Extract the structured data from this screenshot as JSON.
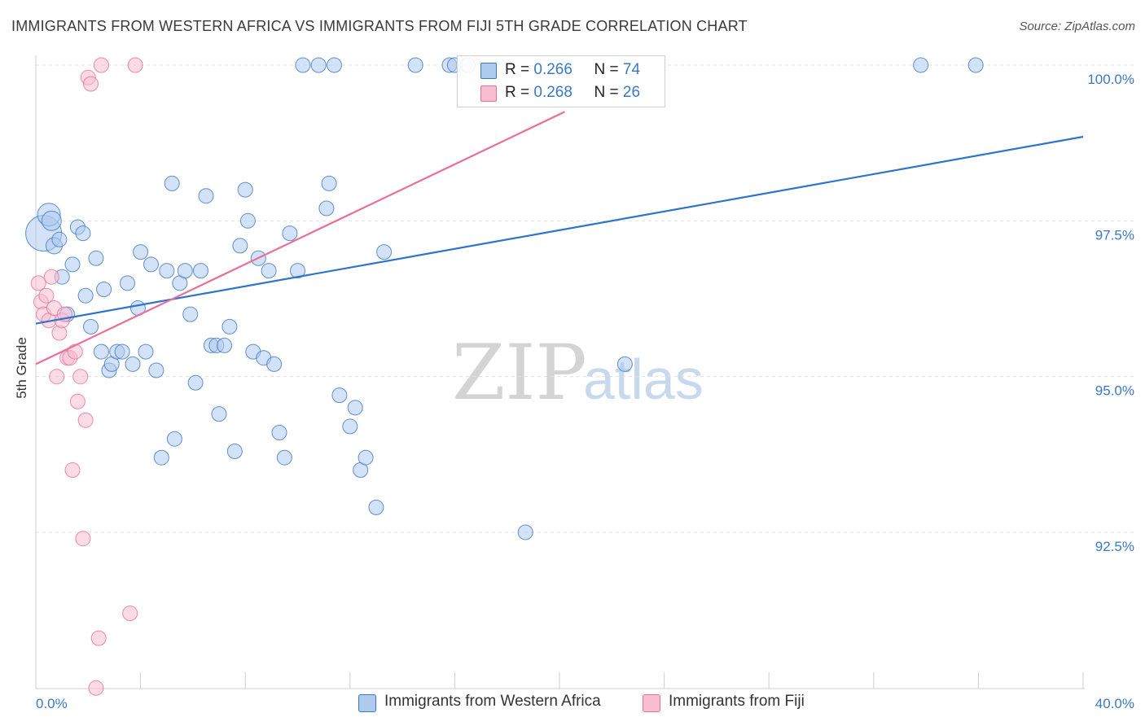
{
  "title": "IMMIGRANTS FROM WESTERN AFRICA VS IMMIGRANTS FROM FIJI 5TH GRADE CORRELATION CHART",
  "source": "Source: ZipAtlas.com",
  "colors": {
    "blue": "#3b78c4",
    "blue_fill": "#aecbee",
    "blue_line": "#2f73cc",
    "pink": "#e86f9a",
    "pink_fill": "#f8bdd1",
    "grid": "#e0e0e0",
    "tick_label": "#3b78c4"
  },
  "legend": {
    "r_label": "R =",
    "n_label": "N =",
    "blue_r": "0.266",
    "blue_n": "74",
    "pink_r": "0.268",
    "pink_n": "26"
  },
  "chart_data": {
    "type": "scatter",
    "title": "IMMIGRANTS FROM WESTERN AFRICA VS IMMIGRANTS FROM FIJI 5TH GRADE CORRELATION CHART",
    "ylabel": "5th Grade",
    "xlabel": "",
    "xlim": [
      0,
      40
    ],
    "ylim": [
      90,
      100.2
    ],
    "x_tick_labels": [
      "0.0%",
      "40.0%"
    ],
    "y_ticks": [
      92.5,
      95.0,
      97.5,
      100.0
    ],
    "y_tick_labels": [
      "92.5%",
      "95.0%",
      "97.5%",
      "100.0%"
    ],
    "grid": true,
    "watermark": "ZIPatlas",
    "series": [
      {
        "name": "Immigrants from Western Africa",
        "color": "blue",
        "trend": {
          "x": [
            0,
            40
          ],
          "y": [
            95.85,
            98.85
          ]
        },
        "points": [
          [
            0.3,
            97.3,
            22
          ],
          [
            0.5,
            97.6,
            14
          ],
          [
            0.6,
            97.5,
            12
          ],
          [
            0.7,
            97.1,
            10
          ],
          [
            0.9,
            97.2,
            9
          ],
          [
            1.0,
            96.6,
            9
          ],
          [
            1.2,
            96.0,
            9
          ],
          [
            1.4,
            96.8,
            9
          ],
          [
            1.6,
            97.4,
            9
          ],
          [
            1.8,
            97.3,
            9
          ],
          [
            1.9,
            96.3,
            9
          ],
          [
            2.1,
            95.8,
            9
          ],
          [
            2.3,
            96.9,
            9
          ],
          [
            2.5,
            95.4,
            9
          ],
          [
            2.6,
            96.4,
            9
          ],
          [
            2.8,
            95.1,
            9
          ],
          [
            2.9,
            95.2,
            9
          ],
          [
            3.1,
            95.4,
            9
          ],
          [
            3.3,
            95.4,
            9
          ],
          [
            3.5,
            96.5,
            9
          ],
          [
            3.7,
            95.2,
            9
          ],
          [
            3.9,
            96.1,
            9
          ],
          [
            4.0,
            97.0,
            9
          ],
          [
            4.2,
            95.4,
            9
          ],
          [
            4.4,
            96.8,
            9
          ],
          [
            4.6,
            95.1,
            9
          ],
          [
            4.8,
            93.7,
            9
          ],
          [
            5.0,
            96.7,
            9
          ],
          [
            5.2,
            98.1,
            9
          ],
          [
            5.3,
            94.0,
            9
          ],
          [
            5.5,
            96.5,
            9
          ],
          [
            5.7,
            96.7,
            9
          ],
          [
            5.9,
            96.0,
            9
          ],
          [
            6.1,
            94.9,
            9
          ],
          [
            6.3,
            96.7,
            9
          ],
          [
            6.5,
            97.9,
            9
          ],
          [
            6.7,
            95.5,
            9
          ],
          [
            6.9,
            95.5,
            9
          ],
          [
            7.0,
            94.4,
            9
          ],
          [
            7.2,
            95.5,
            9
          ],
          [
            7.4,
            95.8,
            9
          ],
          [
            7.6,
            93.8,
            9
          ],
          [
            7.8,
            97.1,
            9
          ],
          [
            8.0,
            98.0,
            9
          ],
          [
            8.1,
            97.5,
            9
          ],
          [
            8.3,
            95.4,
            9
          ],
          [
            8.5,
            96.9,
            9
          ],
          [
            8.7,
            95.3,
            9
          ],
          [
            8.9,
            96.7,
            9
          ],
          [
            9.1,
            95.2,
            9
          ],
          [
            9.3,
            94.1,
            9
          ],
          [
            9.5,
            93.7,
            9
          ],
          [
            9.7,
            97.3,
            9
          ],
          [
            10.0,
            96.7,
            9
          ],
          [
            10.2,
            100.0,
            9
          ],
          [
            10.8,
            100.0,
            9
          ],
          [
            11.1,
            97.7,
            9
          ],
          [
            11.2,
            98.1,
            9
          ],
          [
            11.4,
            100.0,
            9
          ],
          [
            11.6,
            94.7,
            9
          ],
          [
            12.0,
            94.2,
            9
          ],
          [
            12.2,
            94.5,
            9
          ],
          [
            12.4,
            93.5,
            9
          ],
          [
            12.6,
            93.7,
            9
          ],
          [
            13.0,
            92.9,
            9
          ],
          [
            13.3,
            97.0,
            9
          ],
          [
            14.5,
            100.0,
            9
          ],
          [
            15.8,
            100.0,
            9
          ],
          [
            16.0,
            100.0,
            9
          ],
          [
            16.5,
            100.0,
            9
          ],
          [
            18.7,
            92.5,
            9
          ],
          [
            22.5,
            95.2,
            9
          ],
          [
            33.8,
            100.0,
            9
          ],
          [
            35.9,
            100.0,
            9
          ]
        ]
      },
      {
        "name": "Immigrants from Fiji",
        "color": "pink",
        "trend": {
          "x": [
            0,
            20.2
          ],
          "y": [
            95.2,
            99.25
          ]
        },
        "points": [
          [
            0.1,
            96.5,
            9
          ],
          [
            0.2,
            96.2,
            9
          ],
          [
            0.3,
            96.0,
            9
          ],
          [
            0.4,
            96.3,
            9
          ],
          [
            0.5,
            95.9,
            9
          ],
          [
            0.6,
            96.6,
            9
          ],
          [
            0.7,
            96.1,
            9
          ],
          [
            0.8,
            95.0,
            9
          ],
          [
            0.9,
            95.7,
            9
          ],
          [
            1.0,
            95.9,
            9
          ],
          [
            1.1,
            96.0,
            9
          ],
          [
            1.2,
            95.3,
            9
          ],
          [
            1.3,
            95.3,
            9
          ],
          [
            1.4,
            93.5,
            9
          ],
          [
            1.5,
            95.4,
            9
          ],
          [
            1.6,
            94.6,
            9
          ],
          [
            1.7,
            95.0,
            9
          ],
          [
            1.8,
            92.4,
            9
          ],
          [
            1.9,
            94.3,
            9
          ],
          [
            2.0,
            99.8,
            9
          ],
          [
            2.1,
            99.7,
            9
          ],
          [
            2.3,
            90.0,
            9
          ],
          [
            2.4,
            90.8,
            9
          ],
          [
            2.5,
            100.0,
            9
          ],
          [
            3.6,
            91.2,
            9
          ],
          [
            3.8,
            100.0,
            9
          ]
        ]
      }
    ]
  }
}
